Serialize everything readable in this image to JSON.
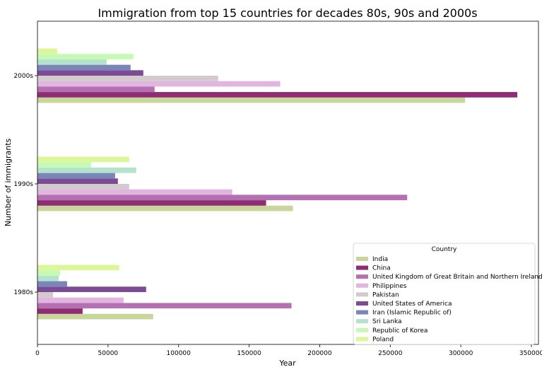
{
  "chart_data": {
    "type": "bar",
    "orientation": "horizontal",
    "title": "Immigration from top 15 countries for decades 80s, 90s and 2000s",
    "xlabel": "Year",
    "ylabel": "Number of immigrants",
    "categories": [
      "1980s",
      "1990s",
      "2000s"
    ],
    "xlim": [
      0,
      355000
    ],
    "xticks": [
      0,
      50000,
      100000,
      150000,
      200000,
      250000,
      300000,
      350000
    ],
    "grid": false,
    "legend": {
      "title": "Country",
      "placement": "lower-right"
    },
    "series": [
      {
        "name": "India",
        "color": "#c8d59b",
        "values": [
          82000,
          181000,
          303000
        ]
      },
      {
        "name": "China",
        "color": "#8f2d74",
        "values": [
          32000,
          162000,
          340000
        ]
      },
      {
        "name": "United Kingdom of Great Britain and Northern Ireland",
        "color": "#b470b0",
        "values": [
          180000,
          262000,
          83000
        ]
      },
      {
        "name": "Philippines",
        "color": "#e2b4e0",
        "values": [
          61000,
          138000,
          172000
        ]
      },
      {
        "name": "Pakistan",
        "color": "#d3cbcb",
        "values": [
          11000,
          65000,
          128000
        ]
      },
      {
        "name": "United States of America",
        "color": "#7b4b96",
        "values": [
          77000,
          57000,
          75000
        ]
      },
      {
        "name": "Iran (Islamic Republic of)",
        "color": "#7a86b8",
        "values": [
          21000,
          55000,
          66000
        ]
      },
      {
        "name": "Sri Lanka",
        "color": "#b5e2cc",
        "values": [
          15000,
          70000,
          49000
        ]
      },
      {
        "name": "Republic of Korea",
        "color": "#c6f9b6",
        "values": [
          16000,
          38000,
          68000
        ]
      },
      {
        "name": "Poland",
        "color": "#dcf79a",
        "values": [
          58000,
          65000,
          14000
        ]
      }
    ]
  }
}
